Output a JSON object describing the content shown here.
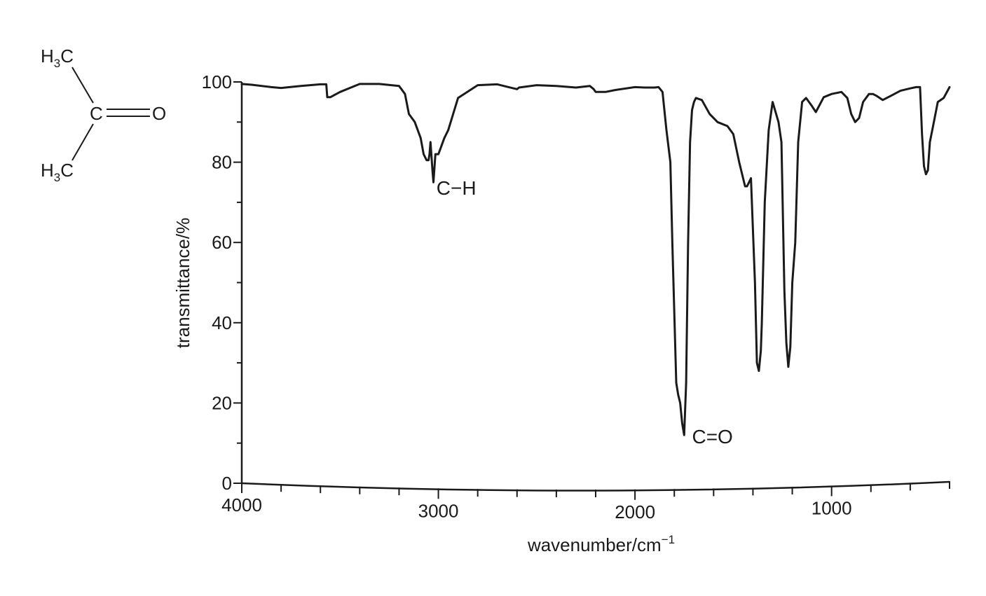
{
  "chart_data": {
    "type": "line",
    "xlabel": "wavenumber/cm",
    "xlabel_sup": "−1",
    "ylabel": "transmittance/%",
    "xlim": [
      4000,
      400
    ],
    "ylim": [
      0,
      100
    ],
    "x_reversed": true,
    "x_ticks": [
      4000,
      3000,
      2000,
      1000
    ],
    "x_tick_labels": [
      "4000",
      "3000",
      "2000",
      "1000"
    ],
    "x_minor_step": 200,
    "y_ticks": [
      0,
      20,
      40,
      60,
      80,
      100
    ],
    "y_tick_labels": [
      "0",
      "20",
      "40",
      "60",
      "80",
      "100"
    ],
    "y_minor_step": 10,
    "grid": false,
    "series": [
      {
        "x": [
          4000,
          3950,
          3850,
          3800,
          3700,
          3600,
          3570,
          3565,
          3550,
          3500,
          3400,
          3300,
          3200,
          3170,
          3150,
          3120,
          3090,
          3075,
          3060,
          3050,
          3045,
          3040,
          3030,
          3025,
          3015,
          3000,
          2985,
          2970,
          2950,
          2900,
          2800,
          2700,
          2650,
          2600,
          2590,
          2500,
          2400,
          2300,
          2230,
          2210,
          2200,
          2150,
          2100,
          2000,
          1950,
          1900,
          1880,
          1860,
          1840,
          1820,
          1810,
          1790,
          1780,
          1770,
          1760,
          1750,
          1740,
          1730,
          1720,
          1710,
          1700,
          1690,
          1660,
          1620,
          1580,
          1530,
          1500,
          1470,
          1440,
          1430,
          1420,
          1410,
          1390,
          1380,
          1370,
          1360,
          1355,
          1340,
          1320,
          1300,
          1270,
          1255,
          1240,
          1230,
          1220,
          1210,
          1200,
          1185,
          1170,
          1150,
          1130,
          1100,
          1080,
          1040,
          1000,
          950,
          920,
          900,
          880,
          860,
          840,
          810,
          790,
          770,
          740,
          700,
          650,
          600,
          570,
          550,
          540,
          530,
          520,
          510,
          500,
          480,
          460,
          430,
          400
        ],
        "y": [
          99.5,
          99.3,
          98.7,
          98.5,
          99,
          99.4,
          99.4,
          96.2,
          96.2,
          97.5,
          99.5,
          99.5,
          99,
          97,
          92,
          90,
          86,
          82,
          80.5,
          80.5,
          82,
          85,
          78,
          75,
          82,
          82,
          84,
          86,
          88,
          96,
          99.2,
          99.4,
          98.8,
          98.2,
          98.6,
          99.2,
          99,
          98.6,
          99,
          98.2,
          97.5,
          97.5,
          98,
          98.7,
          98.6,
          98.6,
          98.7,
          97.5,
          88,
          80,
          60,
          25,
          22,
          20,
          15,
          12,
          25,
          60,
          85,
          93,
          95,
          96,
          95.5,
          92,
          90,
          89,
          87,
          80,
          74,
          74,
          75,
          76,
          50,
          30,
          28,
          33,
          40,
          70,
          88,
          95,
          90,
          85,
          48,
          35,
          29,
          34,
          50,
          60,
          85,
          95,
          96,
          94,
          92.5,
          96.2,
          97,
          97.5,
          96,
          92,
          90,
          91,
          95,
          97,
          97,
          96.5,
          95.5,
          96.5,
          97.8,
          98.4,
          98.7,
          98.7,
          87,
          79,
          77,
          78,
          85,
          90,
          95,
          96,
          98.7
        ]
      }
    ],
    "annotations": [
      {
        "text": "C−H",
        "x": 3010,
        "y": 74
      },
      {
        "text": "C=O",
        "x": 1710,
        "y": 12
      }
    ]
  },
  "molecule": {
    "top_label": "H",
    "top_sub": "3",
    "top_end": "C",
    "center_atom": "C",
    "double_bond_atom": "O",
    "bottom_label": "H",
    "bottom_sub": "3",
    "bottom_end": "C"
  }
}
